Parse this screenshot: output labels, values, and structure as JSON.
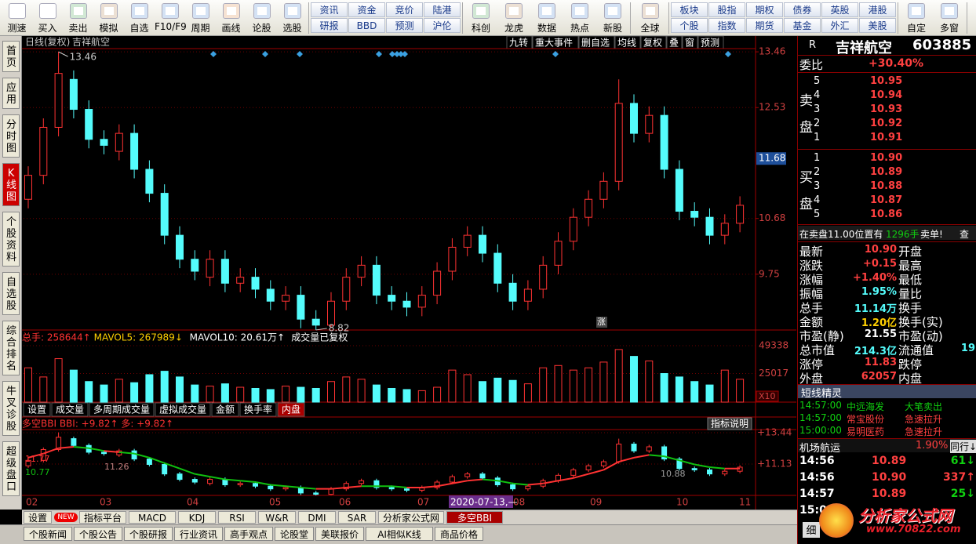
{
  "toolbar": [
    {
      "icons": [
        "测速",
        "买入",
        "卖出",
        "模拟",
        "自选",
        "F10/F9",
        "周期",
        "画线",
        "论股",
        "选股"
      ]
    },
    {
      "pairs": [
        [
          "资讯",
          "研报"
        ],
        [
          "资金",
          "BBD"
        ],
        [
          "竞价",
          "预测"
        ],
        [
          "陆港",
          "沪伦"
        ]
      ]
    },
    {
      "icons": [
        "科创",
        "龙虎",
        "数据",
        "热点",
        "新股"
      ]
    },
    {
      "icons": [
        "全球"
      ]
    },
    {
      "pairs": [
        [
          "板块",
          "个股"
        ],
        [
          "股指",
          "指数"
        ],
        [
          "期权",
          "期货"
        ],
        [
          "债券",
          "基金"
        ],
        [
          "英股",
          "外汇"
        ],
        [
          "港股",
          "美股"
        ]
      ]
    },
    {
      "icons": [
        "自定",
        "多窗"
      ]
    }
  ],
  "left_tabs": [
    "首页",
    "应用",
    "分时图",
    "K线图",
    "个股资料",
    "自选股",
    "综合排名",
    "牛叉诊股",
    "超级盘口"
  ],
  "chart_data": {
    "type": "candlestick",
    "title": "日线(复权)",
    "stock": "吉祥航空",
    "top_buttons": [
      "九转",
      "重大事件",
      "删自选",
      "均线",
      "复权",
      "叠",
      "窗",
      "预测"
    ],
    "open": [
      11.0,
      11.4,
      12.2,
      13.0,
      12.5,
      12.0,
      11.8,
      12.1,
      11.5,
      11.1,
      10.4,
      10.0,
      9.7,
      10.0,
      9.6,
      9.7,
      9.5,
      9.3,
      9.4,
      9.0,
      8.9,
      9.3,
      9.7,
      9.9,
      9.4,
      9.3,
      9.2,
      9.4,
      9.8,
      10.2,
      10.4,
      10.1,
      9.6,
      9.3,
      9.5,
      9.9,
      10.3,
      10.7,
      11.0,
      11.3,
      12.6,
      12.1,
      12.4,
      11.5,
      10.8,
      10.7,
      10.4,
      10.6
    ],
    "high": [
      11.55,
      12.35,
      13.46,
      13.15,
      12.65,
      12.15,
      12.25,
      12.25,
      11.65,
      11.25,
      10.55,
      10.15,
      10.15,
      10.15,
      9.85,
      9.85,
      9.65,
      9.55,
      9.55,
      9.15,
      9.45,
      9.85,
      10.05,
      10.05,
      9.55,
      9.45,
      9.55,
      9.95,
      10.35,
      10.55,
      10.55,
      10.25,
      9.75,
      9.65,
      10.05,
      10.45,
      10.85,
      11.15,
      11.45,
      13.0,
      12.75,
      12.55,
      12.55,
      11.65,
      10.95,
      10.85,
      10.75,
      11.05
    ],
    "low": [
      10.85,
      11.25,
      12.05,
      12.35,
      11.85,
      11.75,
      11.65,
      11.35,
      10.95,
      10.25,
      9.85,
      9.65,
      9.55,
      9.45,
      9.45,
      9.35,
      9.15,
      9.15,
      8.85,
      8.82,
      8.85,
      9.15,
      9.55,
      9.25,
      9.15,
      9.05,
      9.05,
      9.25,
      9.65,
      10.05,
      9.95,
      9.45,
      9.15,
      9.15,
      9.35,
      9.75,
      10.15,
      10.55,
      10.85,
      11.15,
      11.95,
      11.95,
      11.35,
      10.65,
      10.55,
      10.25,
      10.25,
      10.45
    ],
    "close": [
      11.4,
      12.2,
      13.1,
      12.5,
      12.0,
      11.9,
      12.1,
      11.5,
      11.1,
      10.4,
      10.0,
      9.8,
      10.0,
      9.6,
      9.7,
      9.5,
      9.3,
      9.4,
      9.0,
      8.9,
      9.3,
      9.7,
      9.9,
      9.4,
      9.3,
      9.2,
      9.4,
      9.8,
      10.2,
      10.4,
      10.1,
      9.6,
      9.3,
      9.5,
      9.9,
      10.3,
      10.7,
      11.0,
      11.3,
      12.6,
      12.1,
      12.4,
      11.5,
      10.8,
      10.7,
      10.4,
      10.6,
      10.9
    ],
    "ylim": [
      8.78,
      13.54
    ],
    "yticks": [
      13.46,
      12.53,
      10.68,
      9.75
    ],
    "current": 11.68,
    "annotations": [
      "13.46",
      "8.82",
      "涨"
    ],
    "volume": {
      "header": [
        "总手: 258644↑",
        "MAVOL5: 267989↓",
        "MAVOL10: 20.61万↑",
        "成交量已复权"
      ],
      "values": [
        30000,
        22000,
        38000,
        28000,
        18000,
        15000,
        20000,
        17000,
        24000,
        27000,
        22000,
        15000,
        14000,
        16000,
        13000,
        12000,
        11000,
        14000,
        13000,
        12000,
        18000,
        22000,
        20000,
        15000,
        12000,
        11000,
        10000,
        13000,
        28000,
        24000,
        18000,
        21000,
        19000,
        16000,
        30000,
        32000,
        28000,
        30000,
        35000,
        46000,
        40000,
        36000,
        25000,
        22000,
        18000,
        15000,
        28000,
        20000
      ],
      "ylim": [
        0,
        49338
      ],
      "yticks": [
        49338,
        25017
      ],
      "unit": "X10",
      "tabs": [
        "设置",
        "成交量",
        "多周期成交量",
        "虚拟成交量",
        "金额",
        "换手率",
        "内盘"
      ]
    },
    "bbi": {
      "header": "多空BBI BBI: +9.82↑ 多: +9.82↑",
      "help": "指标说明",
      "values": [
        11.6,
        11.9,
        12.3,
        12.4,
        12.3,
        12.1,
        12.0,
        11.9,
        11.6,
        11.2,
        10.8,
        10.4,
        10.2,
        10.0,
        9.9,
        9.8,
        9.6,
        9.5,
        9.4,
        9.3,
        9.3,
        9.4,
        9.5,
        9.5,
        9.5,
        9.4,
        9.4,
        9.5,
        9.7,
        9.9,
        10.0,
        9.9,
        9.7,
        9.6,
        9.7,
        9.9,
        10.1,
        10.4,
        10.7,
        11.3,
        11.6,
        11.8,
        11.7,
        11.4,
        11.1,
        10.9,
        10.8,
        10.8
      ],
      "ylim": [
        8.82,
        13.67
      ],
      "yticks": [
        {
          "value": 13.44,
          "label": "+13.44"
        },
        {
          "value": 11.13,
          "label": "+11.13"
        }
      ],
      "labels": [
        "11.77",
        "10.77",
        "11.26",
        "10.88"
      ]
    },
    "months": [
      "02",
      "03",
      "04",
      "05",
      "06",
      "07",
      "08",
      "09",
      "10",
      "11"
    ],
    "date_marker": "2020-07-13,—"
  },
  "indicator_tabs": [
    "设置",
    "NEW",
    "指标平台",
    "MACD",
    "KDJ",
    "RSI",
    "W&R",
    "DMI",
    "SAR",
    "分析家公式网",
    "多空BBI"
  ],
  "info_tabs": [
    "个股新闻",
    "个股公告",
    "个股研报",
    "行业资讯",
    "高手观点",
    "论股堂",
    "美联报价",
    "AI相似K线",
    "商品价格"
  ],
  "quote": {
    "flag": "R",
    "name": "吉祥航空",
    "code": "603885",
    "ratio_label": "委比",
    "ratio": "+30.40%",
    "sell_label": [
      "卖",
      "盘"
    ],
    "sell_levels": [
      "5",
      "4",
      "3",
      "2",
      "1"
    ],
    "sell_prices": [
      "10.95",
      "10.94",
      "10.93",
      "10.92",
      "10.91"
    ],
    "buy_label": [
      "买",
      "盘"
    ],
    "buy_levels": [
      "1",
      "2",
      "3",
      "4",
      "5"
    ],
    "buy_prices": [
      "10.90",
      "10.89",
      "10.88",
      "10.87",
      "10.86"
    ],
    "notice": [
      "在卖盘11.00位置有",
      "1296手",
      "卖单!",
      "查"
    ],
    "stats": [
      {
        "label": "最新",
        "value": "10.90",
        "label2": "开盘"
      },
      {
        "label": "涨跌",
        "value": "+0.15",
        "label2": "最高"
      },
      {
        "label": "涨幅",
        "value": "+1.40%",
        "label2": "最低"
      },
      {
        "label": "振幅",
        "value": "1.95%",
        "label2": "量比"
      },
      {
        "label": "总手",
        "value": "11.14万",
        "label2": "换手"
      },
      {
        "label": "金额",
        "value": "1.20亿",
        "label2": "换手(实)"
      },
      {
        "label": "市盈(静)",
        "value": "21.55",
        "label2": "市盈(动)"
      },
      {
        "label": "总市值",
        "value": "214.3亿",
        "label2": "流通值",
        "value2": "19"
      },
      {
        "label": "涨停",
        "value": "11.83",
        "label2": "跌停"
      },
      {
        "label": "外盘",
        "value": "62057",
        "label2": "内盘"
      }
    ],
    "sprite_title": "短线精灵",
    "sprite": [
      [
        "14:57:00",
        "中远海发",
        "大笔卖出"
      ],
      [
        "14:57:00",
        "常宝股份",
        "急速拉升"
      ],
      [
        "15:00:00",
        "易明医药",
        "急速拉升"
      ]
    ],
    "sector": [
      "机场航运",
      "1.90%",
      "同行↓"
    ],
    "ticks": [
      [
        "14:56",
        "10.89",
        "61↓"
      ],
      [
        "14:56",
        "10.90",
        "337↑"
      ],
      [
        "14:57",
        "10.89",
        "25↓"
      ],
      [
        "15:0"
      ]
    ],
    "footer": "细"
  },
  "watermark": {
    "title": "分析家公式网",
    "url": "www.70822.com"
  }
}
